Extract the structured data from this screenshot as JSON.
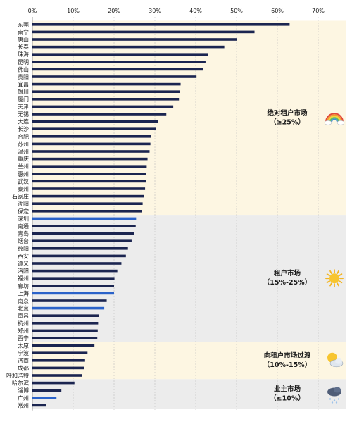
{
  "chart_data": {
    "type": "bar",
    "orientation": "horizontal",
    "xlim": [
      0,
      70
    ],
    "x_ticks": [
      "0%",
      "10%",
      "20%",
      "30%",
      "40%",
      "50%",
      "60%",
      "70%"
    ],
    "x_tick_values": [
      0,
      10,
      20,
      30,
      40,
      50,
      60,
      70
    ],
    "axis_position": "top",
    "grid": true,
    "colors": {
      "default_bar": "#1b2550",
      "highlight_bar": "#2a62c9",
      "band_light": "#fdf6e2",
      "band_gray": "#ececec"
    },
    "categories": [
      "东莞",
      "南宁",
      "唐山",
      "长春",
      "珠海",
      "昆明",
      "佛山",
      "贵阳",
      "宜昌",
      "银川",
      "厦门",
      "天津",
      "无锡",
      "大连",
      "长沙",
      "合肥",
      "苏州",
      "温州",
      "重庆",
      "兰州",
      "惠州",
      "武汉",
      "泰州",
      "石家庄",
      "沈阳",
      "保定",
      "深圳",
      "南通",
      "青岛",
      "烟台",
      "绵阳",
      "西安",
      "遵义",
      "洛阳",
      "福州",
      "廊坊",
      "上海",
      "南京",
      "北京",
      "南昌",
      "杭州",
      "郑州",
      "西宁",
      "太原",
      "宁波",
      "济南",
      "成都",
      "呼和浩特",
      "哈尔滨",
      "淄博",
      "广州",
      "常州"
    ],
    "values": [
      63.0,
      54.4,
      50.1,
      47.0,
      43.0,
      42.4,
      41.8,
      40.2,
      36.3,
      36.1,
      35.9,
      34.5,
      32.8,
      30.8,
      30.2,
      29.0,
      28.9,
      28.7,
      28.2,
      28.0,
      27.9,
      27.8,
      27.6,
      27.3,
      27.0,
      26.8,
      25.4,
      25.3,
      25.0,
      24.3,
      23.4,
      22.9,
      21.8,
      20.8,
      20.1,
      20.0,
      20.0,
      18.2,
      17.6,
      16.3,
      16.1,
      16.0,
      15.9,
      15.2,
      13.5,
      12.9,
      12.6,
      12.2,
      10.3,
      7.1,
      5.9,
      3.3
    ],
    "highlighted": [
      "深圳",
      "上海",
      "北京",
      "广州"
    ],
    "bands": [
      {
        "title": "绝对租户市场",
        "range_label": "（≥25%）",
        "icon": "rainbow-icon",
        "style": "light",
        "from": "东莞",
        "to": "保定"
      },
      {
        "title": "租户市场",
        "range_label": "（15%-25%）",
        "icon": "sun-icon",
        "style": "gray",
        "from": "深圳",
        "to": "西宁"
      },
      {
        "title": "向租户市场过渡",
        "range_label": "（10%-15%）",
        "icon": "sun-behind-cloud-icon",
        "style": "light",
        "from": "太原",
        "to": "呼和浩特"
      },
      {
        "title": "业主市场",
        "range_label": "（≤10%）",
        "icon": "snow-cloud-icon",
        "style": "gray",
        "from": "哈尔滨",
        "to": "常州"
      }
    ]
  }
}
